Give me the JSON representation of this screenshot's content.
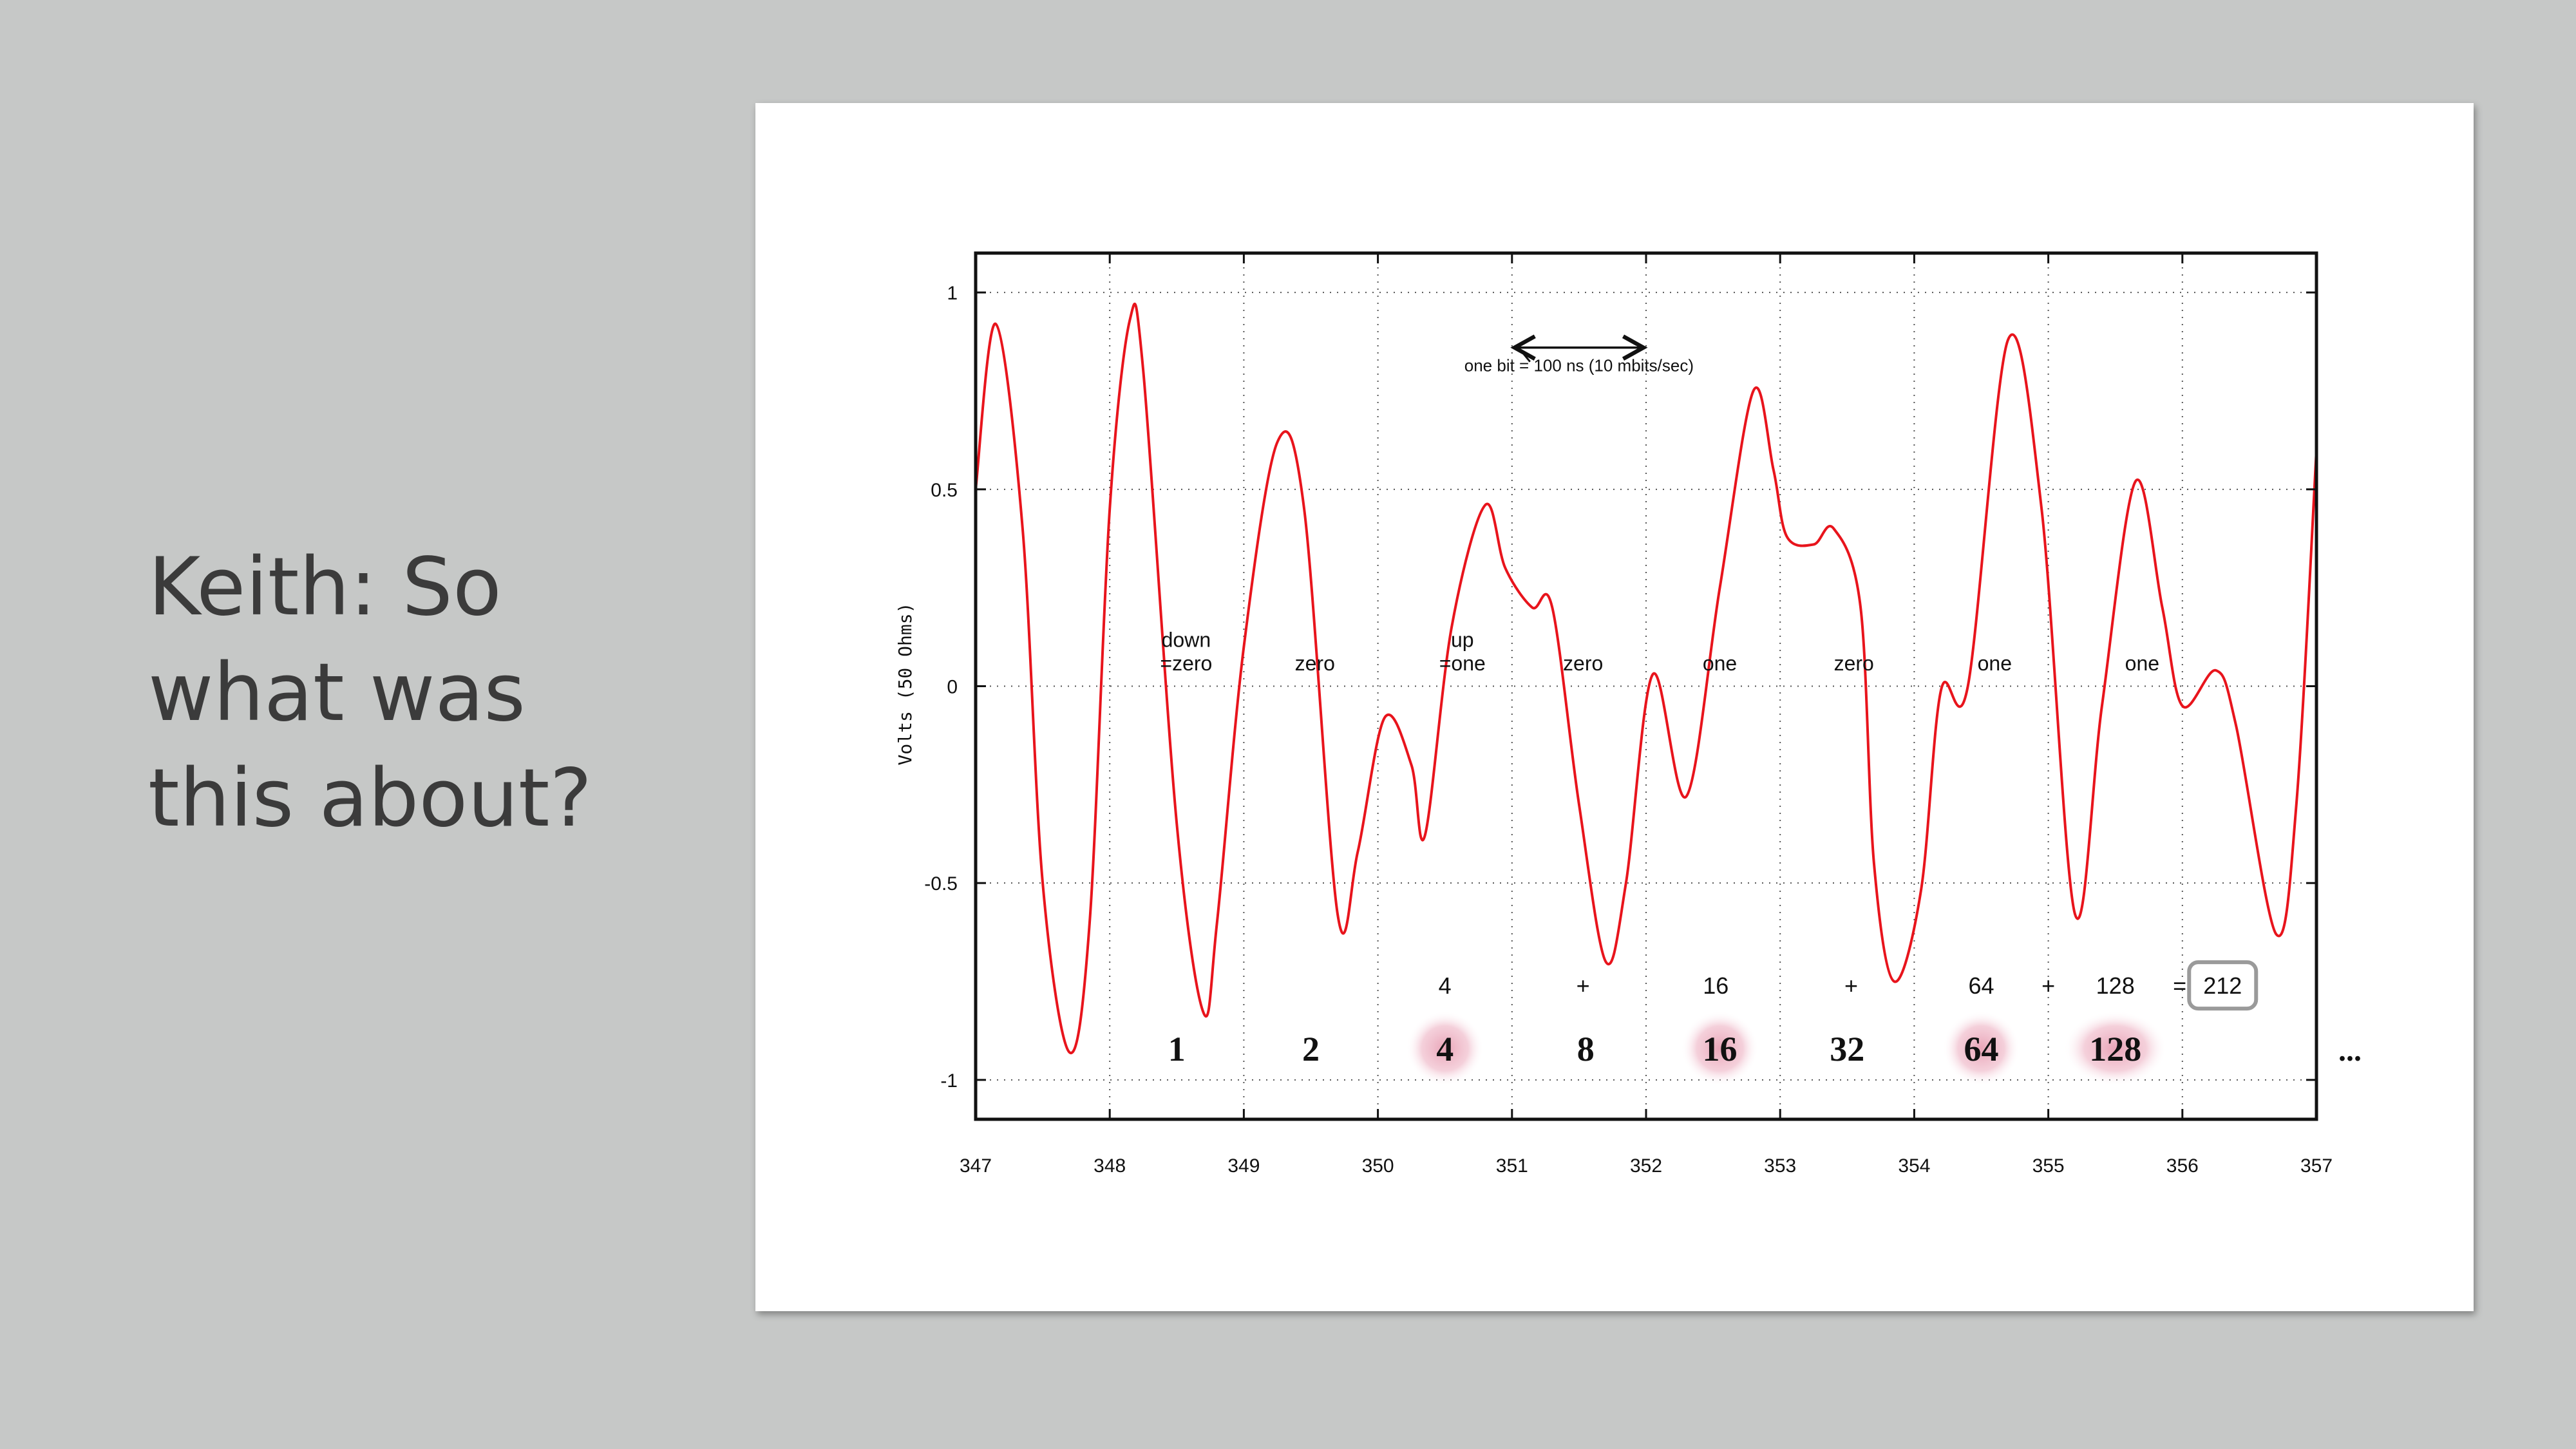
{
  "slide": {
    "heading_lines": [
      "Keith: So",
      "what was",
      "this about?"
    ]
  },
  "chart_data": {
    "type": "line",
    "ylabel": "Volts (50 Ohms)",
    "xlim": [
      347,
      357
    ],
    "ylim": [
      -1.1,
      1.1
    ],
    "x_ticks": [
      "347",
      "348",
      "349",
      "350",
      "351",
      "352",
      "353",
      "354",
      "355",
      "356",
      "357"
    ],
    "y_ticks": [
      {
        "value": 1,
        "label": "1"
      },
      {
        "value": 0.5,
        "label": "0.5"
      },
      {
        "value": 0,
        "label": "0"
      },
      {
        "value": -0.5,
        "label": "-0.5"
      },
      {
        "value": -1,
        "label": "-1"
      }
    ],
    "grid": true,
    "series_color": "#e8141c",
    "highlight_color": "#e8a0b4",
    "series": [
      {
        "x": [
          347.0,
          347.15,
          347.35,
          347.5,
          347.7,
          347.85,
          348.0,
          348.15,
          348.25,
          348.5,
          348.7,
          348.8,
          349.0,
          349.25,
          349.45,
          349.7,
          349.85,
          350.05,
          350.25,
          350.35,
          350.55,
          350.8,
          350.95,
          351.15,
          351.3,
          351.5,
          351.7,
          351.85,
          352.05,
          352.3,
          352.55,
          352.8,
          352.95,
          353.05,
          353.25,
          353.4,
          353.6,
          353.7,
          353.85,
          354.05,
          354.2,
          354.4,
          354.7,
          354.95,
          355.2,
          355.4,
          355.65,
          355.85,
          356.0,
          356.25,
          356.4,
          356.7,
          356.85,
          357.0
        ],
        "y": [
          0.5,
          0.92,
          0.4,
          -0.5,
          -0.93,
          -0.6,
          0.45,
          0.93,
          0.8,
          -0.35,
          -0.83,
          -0.6,
          0.1,
          0.62,
          0.45,
          -0.58,
          -0.42,
          -0.08,
          -0.2,
          -0.38,
          0.15,
          0.46,
          0.3,
          0.2,
          0.2,
          -0.3,
          -0.7,
          -0.5,
          0.03,
          -0.28,
          0.25,
          0.75,
          0.55,
          0.38,
          0.36,
          0.4,
          0.2,
          -0.45,
          -0.75,
          -0.52,
          -0.01,
          0.0,
          0.88,
          0.45,
          -0.58,
          -0.05,
          0.52,
          0.2,
          -0.05,
          0.04,
          -0.1,
          -0.63,
          -0.3,
          0.6
        ]
      }
    ],
    "annotations": [
      {
        "text": "one bit = 100 ns (10 mbits/sec)",
        "x": 351.5,
        "y": 0.8
      },
      {
        "text": "down",
        "x": 348.57,
        "y": 0.1
      },
      {
        "text": "=zero",
        "x": 348.57,
        "y": 0.04
      },
      {
        "text": "zero",
        "x": 349.53,
        "y": 0.04
      },
      {
        "text": "up",
        "x": 350.63,
        "y": 0.1
      },
      {
        "text": "=one",
        "x": 350.63,
        "y": 0.04
      },
      {
        "text": "zero",
        "x": 351.53,
        "y": 0.04
      },
      {
        "text": "one",
        "x": 352.55,
        "y": 0.04
      },
      {
        "text": "zero",
        "x": 353.55,
        "y": 0.04
      },
      {
        "text": "one",
        "x": 354.6,
        "y": 0.04
      },
      {
        "text": "one",
        "x": 355.7,
        "y": 0.04
      }
    ],
    "bit_arrow": {
      "from": 351.0,
      "to": 352.0,
      "y": 0.86
    },
    "bit_weights": [
      {
        "label": "1",
        "x": 348.5,
        "highlighted": false
      },
      {
        "label": "2",
        "x": 349.5,
        "highlighted": false
      },
      {
        "label": "4",
        "x": 350.5,
        "highlighted": true
      },
      {
        "label": "8",
        "x": 351.55,
        "highlighted": false
      },
      {
        "label": "16",
        "x": 352.55,
        "highlighted": true
      },
      {
        "label": "32",
        "x": 353.5,
        "highlighted": false
      },
      {
        "label": "64",
        "x": 354.5,
        "highlighted": true
      },
      {
        "label": "128",
        "x": 355.5,
        "highlighted": true
      }
    ],
    "weights_ellipsis": "...",
    "sum_terms": [
      {
        "text": "4",
        "x": 350.5
      },
      {
        "text": "+",
        "x": 351.53
      },
      {
        "text": "16",
        "x": 352.52
      },
      {
        "text": "+",
        "x": 353.53
      },
      {
        "text": "64",
        "x": 354.5
      },
      {
        "text": "+",
        "x": 355.0
      },
      {
        "text": "128",
        "x": 355.5
      },
      {
        "text": "=",
        "x": 355.98
      }
    ],
    "sum_result": {
      "text": "212",
      "x": 356.3
    }
  }
}
